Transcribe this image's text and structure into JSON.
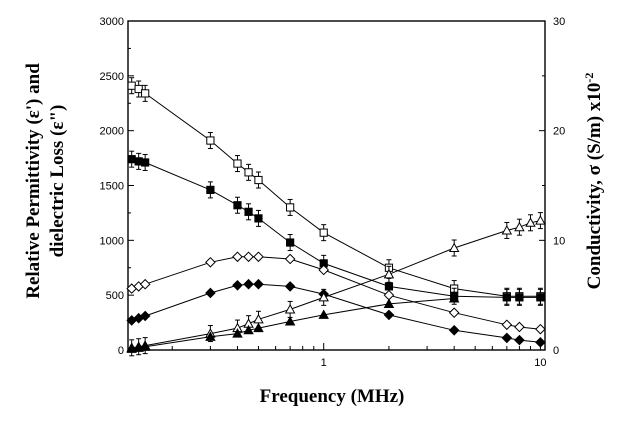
{
  "chart_data": {
    "type": "scatter",
    "xlabel": "Frequency (MHz)",
    "ylabel": "Relative Permittivity (ε') and dielectric Loss (ε\")",
    "ylabel_line1": "Relative Permittivity (ε') and",
    "ylabel_line2": "dielectric Loss (ε\")",
    "y2label": "Conductivity, σ (S/m) x10",
    "y2label_sup": "-2",
    "x_scale": "log",
    "xlim": [
      0.125,
      10.5
    ],
    "ylim": [
      0,
      3000
    ],
    "y2lim": [
      0,
      30
    ],
    "x_ticks": [
      "1",
      "10"
    ],
    "y_ticks": [
      "0",
      "500",
      "1000",
      "1500",
      "2000",
      "2500",
      "3000"
    ],
    "y2_ticks": [
      "0",
      "10",
      "20",
      "30"
    ],
    "grid": false,
    "series": [
      {
        "marker": "open-square",
        "axis": "left",
        "errorbars": true,
        "x": [
          0.13,
          0.14,
          0.15,
          0.3,
          0.4,
          0.45,
          0.5,
          0.7,
          1.0,
          2.0,
          4.0,
          7.0,
          8.0,
          10.0
        ],
        "y": [
          2410,
          2380,
          2340,
          1910,
          1700,
          1620,
          1550,
          1300,
          1070,
          750,
          560,
          490,
          490,
          490
        ]
      },
      {
        "marker": "filled-square",
        "axis": "left",
        "errorbars": true,
        "x": [
          0.13,
          0.14,
          0.15,
          0.3,
          0.4,
          0.45,
          0.5,
          0.7,
          1.0,
          2.0,
          4.0,
          7.0,
          8.0,
          10.0
        ],
        "y": [
          1740,
          1720,
          1710,
          1460,
          1320,
          1260,
          1200,
          980,
          790,
          580,
          490,
          480,
          480,
          480
        ]
      },
      {
        "marker": "open-diamond",
        "axis": "left",
        "errorbars": false,
        "x": [
          0.13,
          0.14,
          0.15,
          0.3,
          0.4,
          0.45,
          0.5,
          0.7,
          1.0,
          2.0,
          4.0,
          7.0,
          8.0,
          10.0
        ],
        "y": [
          560,
          580,
          600,
          800,
          850,
          850,
          850,
          830,
          730,
          500,
          340,
          230,
          210,
          190
        ]
      },
      {
        "marker": "filled-diamond",
        "axis": "left",
        "errorbars": false,
        "x": [
          0.13,
          0.14,
          0.15,
          0.3,
          0.4,
          0.45,
          0.5,
          0.7,
          1.0,
          2.0,
          4.0,
          7.0,
          8.0,
          10.0
        ],
        "y": [
          270,
          290,
          310,
          520,
          590,
          600,
          600,
          580,
          510,
          320,
          180,
          110,
          90,
          70
        ]
      },
      {
        "marker": "open-triangle",
        "axis": "right",
        "errorbars": true,
        "x": [
          0.13,
          0.14,
          0.15,
          0.3,
          0.4,
          0.45,
          0.5,
          0.7,
          1.0,
          2.0,
          4.0,
          7.0,
          8.0,
          9.0,
          10.0
        ],
        "y": [
          0.2,
          0.3,
          0.4,
          1.5,
          2.0,
          2.4,
          2.8,
          3.7,
          4.8,
          6.9,
          9.3,
          10.9,
          11.2,
          11.6,
          11.8
        ]
      },
      {
        "marker": "filled-triangle",
        "axis": "right",
        "errorbars": false,
        "x": [
          0.13,
          0.14,
          0.15,
          0.3,
          0.4,
          0.45,
          0.5,
          0.7,
          1.0,
          2.0,
          4.0
        ],
        "y": [
          0.1,
          0.2,
          0.3,
          1.2,
          1.5,
          1.8,
          2.0,
          2.6,
          3.2,
          4.2,
          4.7
        ]
      }
    ]
  }
}
